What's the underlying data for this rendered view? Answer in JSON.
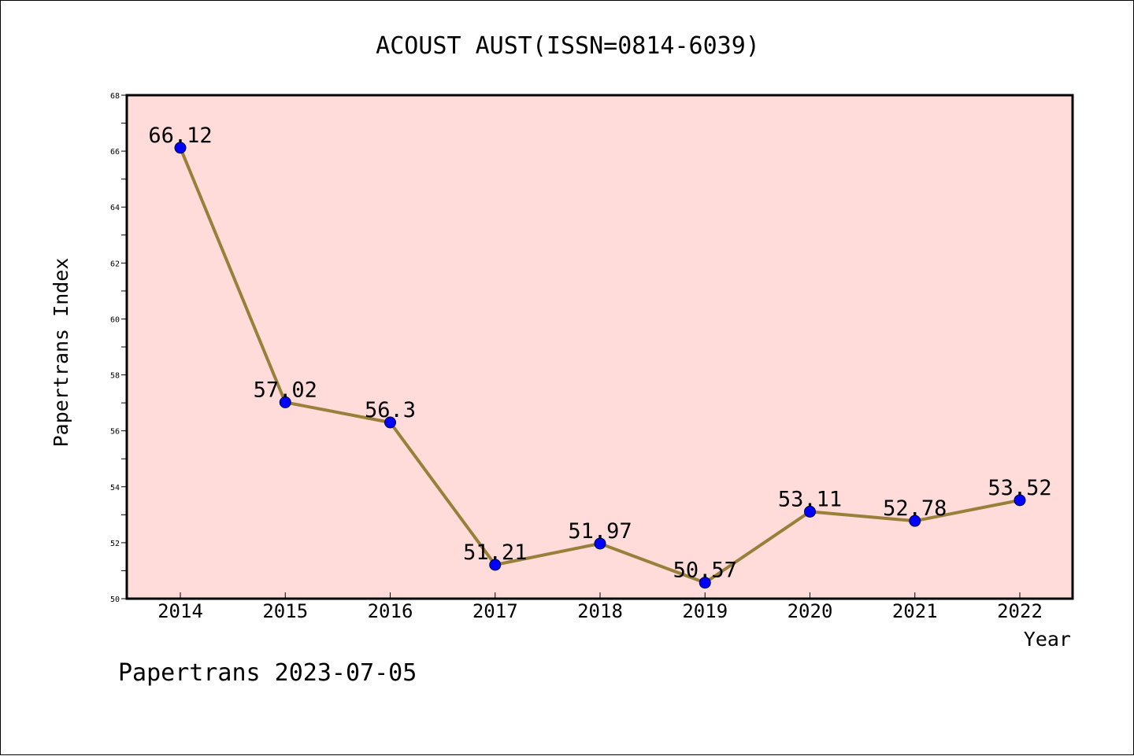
{
  "chart_data": {
    "type": "line",
    "title": "ACOUST AUST(ISSN=0814-6039)",
    "xlabel": "Year",
    "ylabel": "Papertrans Index",
    "x": [
      "2014",
      "2015",
      "2016",
      "2017",
      "2018",
      "2019",
      "2020",
      "2021",
      "2022"
    ],
    "series": [
      {
        "values": [
          66.12,
          57.02,
          56.3,
          51.21,
          51.97,
          50.57,
          53.11,
          52.78,
          53.52
        ],
        "labels": [
          "66.12",
          "57.02",
          "56.3",
          "51.21",
          "51.97",
          "50.57",
          "53.11",
          "52.78",
          "53.52"
        ]
      }
    ],
    "ylim": [
      50,
      68
    ],
    "yticks": [
      "50",
      "52",
      "54",
      "56",
      "58",
      "60",
      "62",
      "64",
      "66",
      "68"
    ],
    "grid": false,
    "legend": "none"
  },
  "footer": "Papertrans 2023-07-05",
  "colors": {
    "plot_background": "#ffdcd9",
    "line": "#9a7f3a",
    "marker": "#0000ff"
  }
}
